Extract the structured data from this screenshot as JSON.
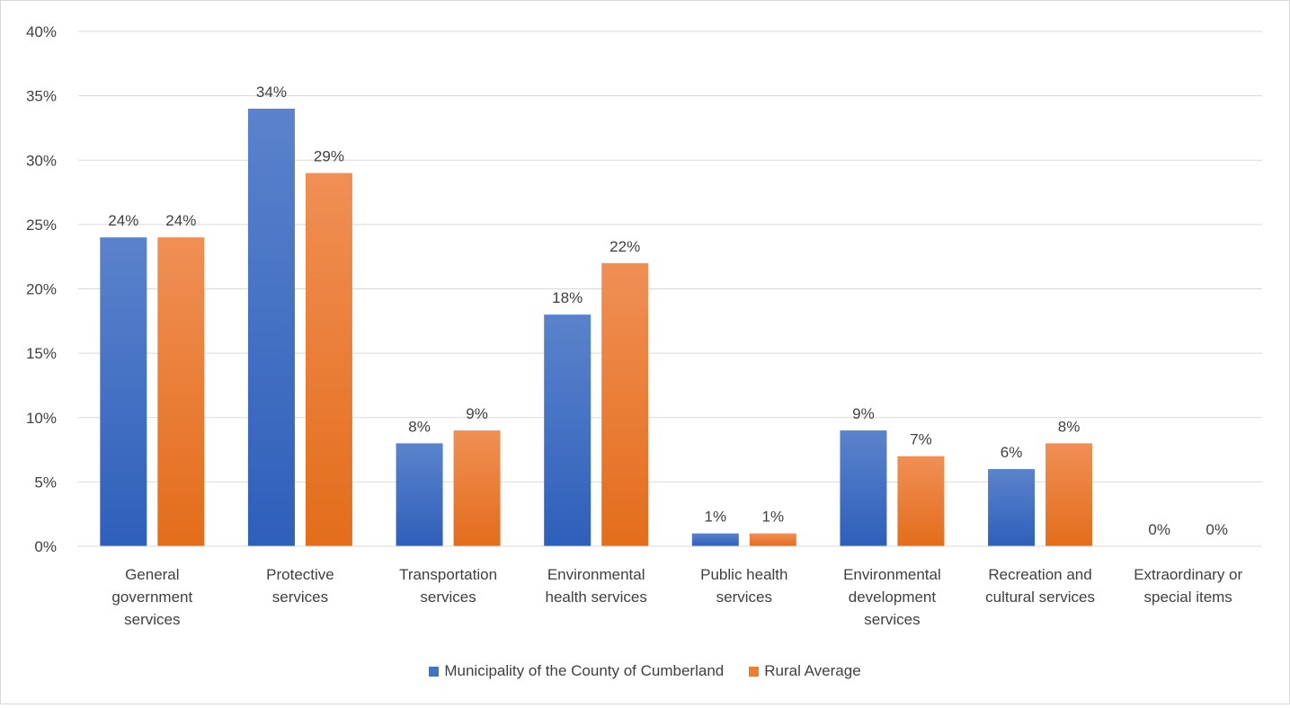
{
  "chart_data": {
    "type": "bar",
    "categories": [
      [
        "General",
        "government",
        "services"
      ],
      [
        "Protective",
        "services"
      ],
      [
        "Transportation",
        "services"
      ],
      [
        "Environmental",
        "health services"
      ],
      [
        "Public health",
        "services"
      ],
      [
        "Environmental",
        "development",
        "services"
      ],
      [
        "Recreation and",
        "cultural services"
      ],
      [
        "Extraordinary or",
        "special items"
      ]
    ],
    "series": [
      {
        "name": "Municipality of the County of Cumberland",
        "color": "#4472c4",
        "values": [
          24,
          34,
          8,
          18,
          1,
          9,
          6,
          0
        ]
      },
      {
        "name": "Rural Average",
        "color": "#ed7d31",
        "values": [
          24,
          29,
          9,
          22,
          1,
          7,
          8,
          0
        ]
      }
    ],
    "ylim": [
      0,
      40
    ],
    "yticks": [
      0,
      5,
      10,
      15,
      20,
      25,
      30,
      35,
      40
    ],
    "ytick_suffix": "%",
    "value_suffix": "%",
    "grid": true,
    "legend_position": "bottom"
  }
}
